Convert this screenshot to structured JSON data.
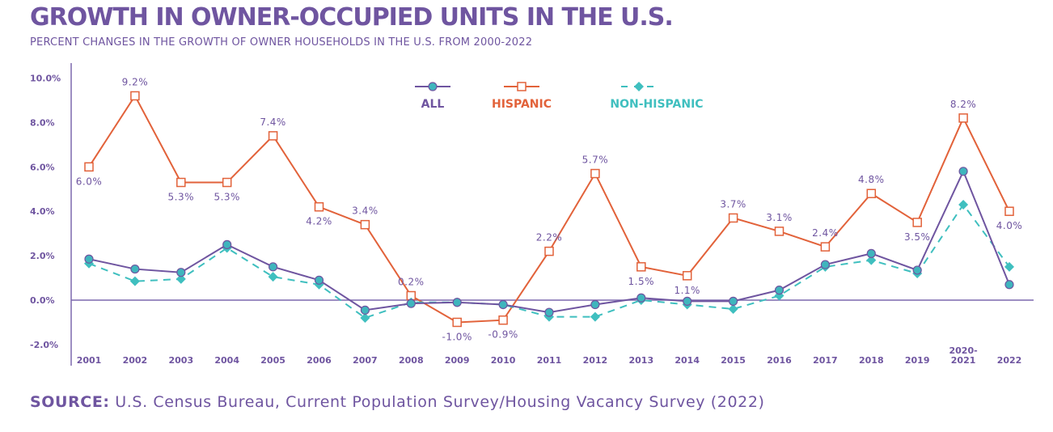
{
  "chart_data": {
    "type": "line",
    "title": "GROWTH IN OWNER-OCCUPIED UNITS IN THE U.S.",
    "subtitle": "PERCENT CHANGES IN THE GROWTH OF OWNER HOUSEHOLDS IN THE U.S. FROM 2000-2022",
    "source_label": "SOURCE:",
    "source_text": " U.S. Census Bureau, Current Population Survey/Housing Vacancy Survey (2022)",
    "categories": [
      "2001",
      "2002",
      "2003",
      "2004",
      "2005",
      "2006",
      "2007",
      "2008",
      "2009",
      "2010",
      "2011",
      "2012",
      "2013",
      "2014",
      "2015",
      "2016",
      "2017",
      "2018",
      "2019",
      "2020-\n2021",
      "2022"
    ],
    "category_labels": [
      "2001",
      "2002",
      "2003",
      "2004",
      "2005",
      "2006",
      "2007",
      "2008",
      "2009",
      "2010",
      "2011",
      "2012",
      "2013",
      "2014",
      "2015",
      "2016",
      "2017",
      "2018",
      "2019",
      [
        "2020-",
        "2021"
      ],
      "2022"
    ],
    "y_ticks": [
      -2,
      0,
      2,
      4,
      6,
      8,
      10
    ],
    "y_tick_labels": [
      "-2.0%",
      "0.0%",
      "2.0%",
      "4.0%",
      "6.0%",
      "8.0%",
      "10.0%"
    ],
    "ylim": [
      -2,
      10
    ],
    "grid": false,
    "legend_placement": "top-center",
    "series": [
      {
        "name": "ALL",
        "color": "#6f55a0",
        "marker": "circle",
        "marker_color": "#3fb5bd",
        "line": "solid",
        "values": [
          1.85,
          1.4,
          1.25,
          2.5,
          1.5,
          0.9,
          -0.45,
          -0.15,
          -0.1,
          -0.2,
          -0.55,
          -0.2,
          0.1,
          -0.05,
          -0.05,
          0.45,
          1.6,
          2.1,
          1.35,
          5.8,
          0.7
        ]
      },
      {
        "name": "HISPANIC",
        "color": "#e2623a",
        "marker": "square",
        "line": "solid",
        "values": [
          6.0,
          9.2,
          5.3,
          5.3,
          7.4,
          4.2,
          3.4,
          0.2,
          -1.0,
          -0.9,
          2.2,
          5.7,
          1.5,
          1.1,
          3.7,
          3.1,
          2.4,
          4.8,
          3.5,
          8.2,
          4.0
        ],
        "data_labels": [
          "6.0%",
          "9.2%",
          "5.3%",
          "5.3%",
          "7.4%",
          "4.2%",
          "3.4%",
          "0.2%",
          "-1.0%",
          "-0.9%",
          "2.2%",
          "5.7%",
          "1.5%",
          "1.1%",
          "3.7%",
          "3.1%",
          "2.4%",
          "4.8%",
          "3.5%",
          "8.2%",
          "4.0%"
        ]
      },
      {
        "name": "NON-HISPANIC",
        "color": "#3fbfbf",
        "marker": "diamond",
        "line": "dashed",
        "values": [
          1.65,
          0.85,
          0.95,
          2.35,
          1.05,
          0.7,
          -0.8,
          -0.1,
          -0.1,
          -0.2,
          -0.75,
          -0.75,
          0.0,
          -0.2,
          -0.4,
          0.2,
          1.5,
          1.8,
          1.2,
          4.3,
          1.5
        ]
      }
    ]
  }
}
